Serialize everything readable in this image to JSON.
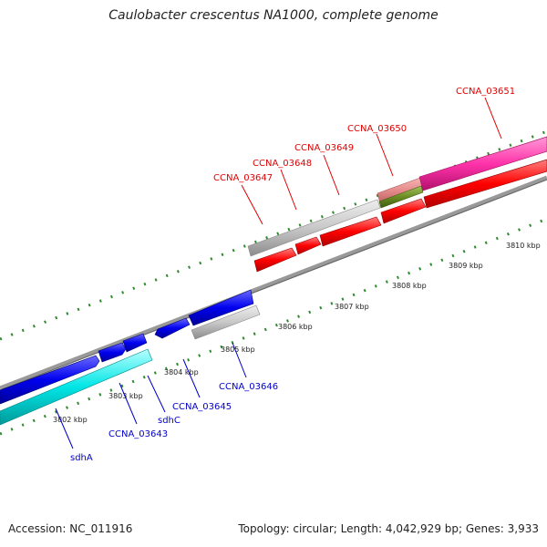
{
  "title": "Caulobacter crescentus NA1000, complete genome",
  "accession": "Accession: NC_011916",
  "stats": "Topology: circular; Length: 4,042,929 bp; Genes: 3,933",
  "colors": {
    "plus_strand_cds": "#ff0000",
    "minus_strand_cds": "#0000ee",
    "label_plus": "#e00000",
    "label_minus": "#0000cc",
    "backbone": "#888888",
    "tick": "#2e8b2e",
    "cyan_feature": "#00e5e5",
    "magenta_feature": "#ff33aa",
    "gray_feature": "#c8c8c8"
  },
  "scale_labels": [
    "3802 kbp",
    "3803 kbp",
    "3804 kbp",
    "3805 kbp",
    "3806 kbp",
    "3807 kbp",
    "3808 kbp",
    "3809 kbp",
    "3810 kbp"
  ],
  "gene_labels_upper": [
    "CCNA_03647",
    "CCNA_03648",
    "CCNA_03649",
    "CCNA_03650",
    "CCNA_03651"
  ],
  "gene_labels_lower": [
    "sdhA",
    "CCNA_03643",
    "sdhC",
    "CCNA_03645",
    "CCNA_03646"
  ]
}
